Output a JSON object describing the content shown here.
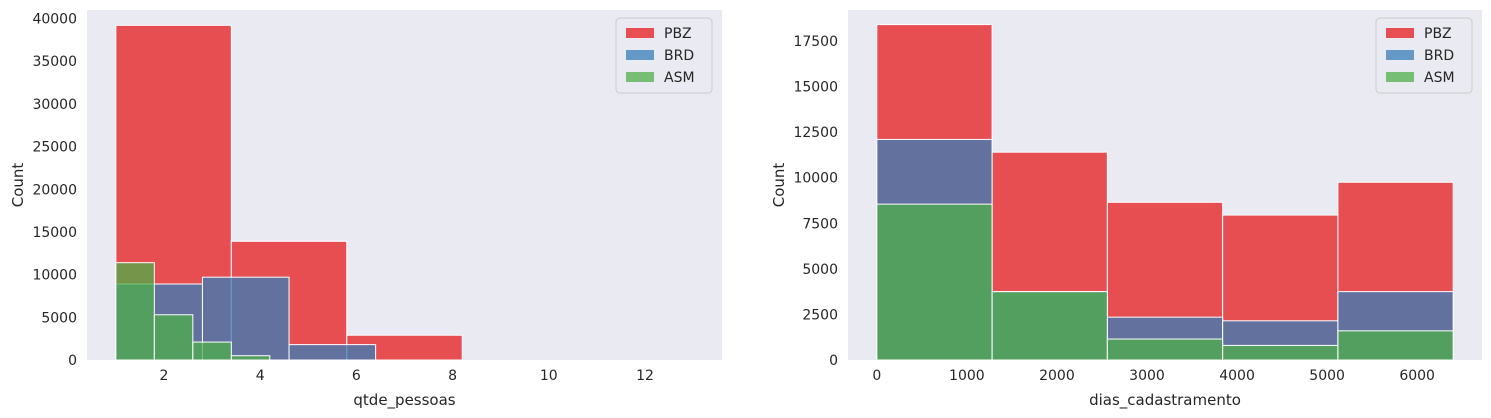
{
  "chart_data": [
    {
      "type": "histogram",
      "xlabel": "qtde_pessoas",
      "ylabel": "Count",
      "xlim": [
        0.4,
        13.6
      ],
      "ylim": [
        0,
        41000
      ],
      "xticks": [
        2,
        4,
        6,
        8,
        10,
        12
      ],
      "yticks": [
        0,
        5000,
        10000,
        15000,
        20000,
        25000,
        30000,
        35000,
        40000
      ],
      "grid": false,
      "legend_position": "top-right",
      "series": [
        {
          "name": "PBZ",
          "color": "#e41a1c",
          "bins": [
            {
              "x0": 1.0,
              "x1": 3.4,
              "count": 39200
            },
            {
              "x0": 3.4,
              "x1": 5.8,
              "count": 13900
            },
            {
              "x0": 5.8,
              "x1": 8.2,
              "count": 2900
            },
            {
              "x0": 8.2,
              "x1": 10.6,
              "count": 0
            },
            {
              "x0": 10.6,
              "x1": 13.0,
              "count": 0
            }
          ]
        },
        {
          "name": "BRD",
          "color": "#377eb8",
          "bins": [
            {
              "x0": 1.0,
              "x1": 2.8,
              "count": 8900
            },
            {
              "x0": 2.8,
              "x1": 4.6,
              "count": 9700
            },
            {
              "x0": 4.6,
              "x1": 6.4,
              "count": 1800
            }
          ]
        },
        {
          "name": "ASM",
          "color": "#4daf4a",
          "bins": [
            {
              "x0": 1.0,
              "x1": 1.8,
              "count": 11400
            },
            {
              "x0": 1.8,
              "x1": 2.6,
              "count": 5300
            },
            {
              "x0": 2.6,
              "x1": 3.4,
              "count": 2100
            },
            {
              "x0": 3.4,
              "x1": 4.2,
              "count": 500
            }
          ]
        }
      ]
    },
    {
      "type": "histogram",
      "xlabel": "dias_cadastramento",
      "ylabel": "Count",
      "xlim": [
        -320,
        6720
      ],
      "ylim": [
        0,
        19200
      ],
      "xticks": [
        0,
        1000,
        2000,
        3000,
        4000,
        5000,
        6000
      ],
      "yticks": [
        0,
        2500,
        5000,
        7500,
        10000,
        12500,
        15000,
        17500
      ],
      "grid": false,
      "legend_position": "top-right",
      "series": [
        {
          "name": "PBZ",
          "color": "#e41a1c",
          "bins": [
            {
              "x0": 0,
              "x1": 1280,
              "count": 18400
            },
            {
              "x0": 1280,
              "x1": 2560,
              "count": 11400
            },
            {
              "x0": 2560,
              "x1": 3840,
              "count": 8650
            },
            {
              "x0": 3840,
              "x1": 5120,
              "count": 7950
            },
            {
              "x0": 5120,
              "x1": 6400,
              "count": 9750
            }
          ]
        },
        {
          "name": "BRD",
          "color": "#377eb8",
          "bins": [
            {
              "x0": 0,
              "x1": 1280,
              "count": 12100
            },
            {
              "x0": 1280,
              "x1": 2560,
              "count": 3750
            },
            {
              "x0": 2560,
              "x1": 3840,
              "count": 2350
            },
            {
              "x0": 3840,
              "x1": 5120,
              "count": 2150
            },
            {
              "x0": 5120,
              "x1": 6400,
              "count": 3750
            }
          ]
        },
        {
          "name": "ASM",
          "color": "#4daf4a",
          "bins": [
            {
              "x0": 0,
              "x1": 1280,
              "count": 8550
            },
            {
              "x0": 1280,
              "x1": 2560,
              "count": 3750
            },
            {
              "x0": 2560,
              "x1": 3840,
              "count": 1150
            },
            {
              "x0": 3840,
              "x1": 5120,
              "count": 800
            },
            {
              "x0": 5120,
              "x1": 6400,
              "count": 1600
            }
          ]
        }
      ]
    }
  ]
}
